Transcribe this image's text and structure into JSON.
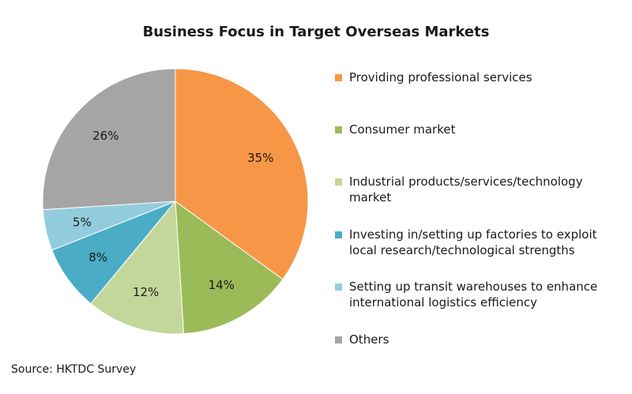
{
  "chart_data": {
    "type": "pie",
    "title": "Business Focus in Target Overseas Markets",
    "slices": [
      {
        "label": "Providing professional services",
        "value": 35,
        "value_label": "35%",
        "color": "#f79646"
      },
      {
        "label": "Consumer market",
        "value": 14,
        "value_label": "14%",
        "color": "#9bbb59"
      },
      {
        "label": "Industrial products/services/technology market",
        "value": 12,
        "value_label": "12%",
        "color": "#c4d79b"
      },
      {
        "label": "Investing in/setting up factories to exploit local research/technological strengths",
        "value": 8,
        "value_label": "8%",
        "color": "#4bacc6"
      },
      {
        "label": "Setting up transit warehouses to enhance international logistics efficiency",
        "value": 5,
        "value_label": "5%",
        "color": "#93cddd"
      },
      {
        "label": "Others",
        "value": 26,
        "value_label": "26%",
        "color": "#a5a5a5"
      }
    ],
    "legend_position": "right",
    "source": "Source: HKTDC Survey"
  }
}
